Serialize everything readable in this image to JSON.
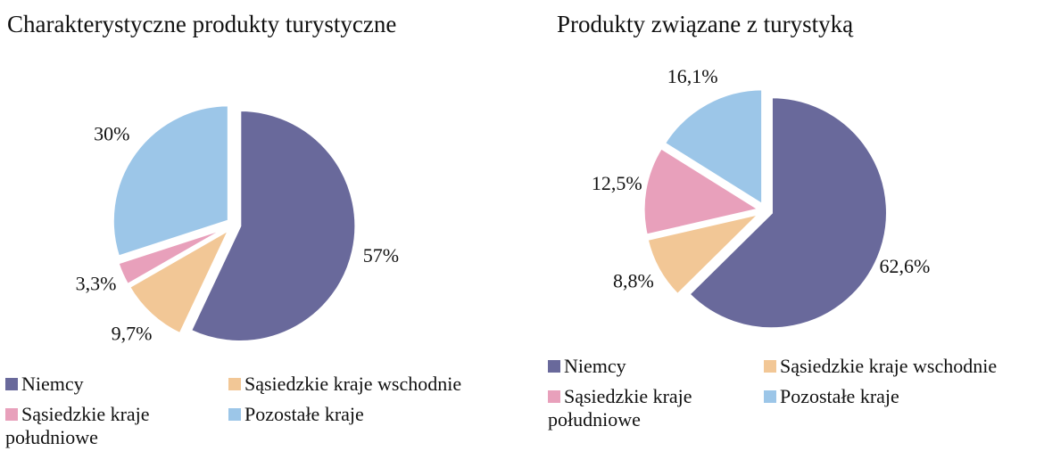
{
  "chart_data": [
    {
      "type": "pie",
      "title": "Charakterystyczne produkty turystyczne",
      "categories": [
        "Niemcy",
        "Sąsiedzkie kraje wschodnie",
        "Sąsiedzkie kraje południowe",
        "Pozostałe kraje"
      ],
      "values": [
        57,
        9.7,
        3.3,
        30
      ],
      "value_labels": [
        "57%",
        "9,7%",
        "3,3%",
        "30%"
      ],
      "colors": [
        "#69699b",
        "#f2c796",
        "#e8a0bb",
        "#9cc6e8"
      ]
    },
    {
      "type": "pie",
      "title": "Produkty związane z turystyką",
      "categories": [
        "Niemcy",
        "Sąsiedzkie kraje wschodnie",
        "Sąsiedzkie kraje południowe",
        "Pozostałe kraje"
      ],
      "values": [
        62.6,
        8.8,
        12.5,
        16.1
      ],
      "value_labels": [
        "62,6%",
        "8,8%",
        "12,5%",
        "16,1%"
      ],
      "colors": [
        "#69699b",
        "#f2c796",
        "#e8a0bb",
        "#9cc6e8"
      ]
    }
  ]
}
